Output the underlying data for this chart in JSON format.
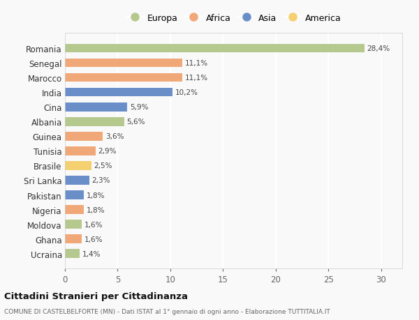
{
  "countries": [
    "Romania",
    "Senegal",
    "Marocco",
    "India",
    "Cina",
    "Albania",
    "Guinea",
    "Tunisia",
    "Brasile",
    "Sri Lanka",
    "Pakistan",
    "Nigeria",
    "Moldova",
    "Ghana",
    "Ucraina"
  ],
  "values": [
    28.4,
    11.1,
    11.1,
    10.2,
    5.9,
    5.6,
    3.6,
    2.9,
    2.5,
    2.3,
    1.8,
    1.8,
    1.6,
    1.6,
    1.4
  ],
  "continents": [
    "Europa",
    "Africa",
    "Africa",
    "Asia",
    "Asia",
    "Europa",
    "Africa",
    "Africa",
    "America",
    "Asia",
    "Asia",
    "Africa",
    "Europa",
    "Africa",
    "Europa"
  ],
  "colors": {
    "Europa": "#b5c98e",
    "Africa": "#f0a878",
    "Asia": "#6a8fc8",
    "America": "#f5d070"
  },
  "legend_order": [
    "Europa",
    "Africa",
    "Asia",
    "America"
  ],
  "xlim": [
    0,
    32
  ],
  "xticks": [
    0,
    5,
    10,
    15,
    20,
    25,
    30
  ],
  "title": "Cittadini Stranieri per Cittadinanza",
  "subtitle": "COMUNE DI CASTELBELFORTE (MN) - Dati ISTAT al 1° gennaio di ogni anno - Elaborazione TUTTITALIA.IT",
  "bg_color": "#f9f9f9",
  "bar_labels": [
    "28,4%",
    "11,1%",
    "11,1%",
    "10,2%",
    "5,9%",
    "5,6%",
    "3,6%",
    "2,9%",
    "2,5%",
    "2,3%",
    "1,8%",
    "1,8%",
    "1,6%",
    "1,6%",
    "1,4%"
  ]
}
